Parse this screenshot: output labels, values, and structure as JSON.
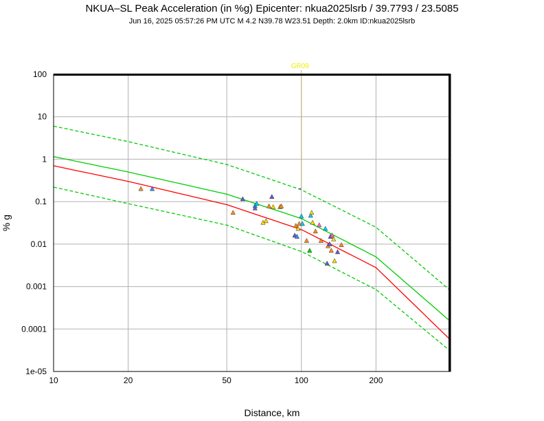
{
  "chart_data": {
    "type": "scatter",
    "title": "NKUA–SL Peak Acceleration (in %g) Epicenter: nkua2025lsrb / 39.7793 / 23.5085",
    "subtitle": "Jun 16, 2025 05:57:26 PM UTC   M 4.2   N39.78 W23.51   Depth: 2.0km   ID:nkua2025lsrb",
    "xlabel": "Distance, km",
    "ylabel": "% g",
    "x_scale": "log",
    "y_scale": "log",
    "xlim": [
      10,
      400
    ],
    "ylim": [
      1e-05,
      100
    ],
    "grid": true,
    "x_ticks": [
      {
        "value": 10,
        "label": "10"
      },
      {
        "value": 20,
        "label": "20"
      },
      {
        "value": 50,
        "label": "50"
      },
      {
        "value": 100,
        "label": "100"
      },
      {
        "value": 200,
        "label": "200"
      }
    ],
    "y_ticks": [
      {
        "value": 100,
        "label": "100"
      },
      {
        "value": 10,
        "label": "10"
      },
      {
        "value": 1,
        "label": "1"
      },
      {
        "value": 0.1,
        "label": "0.1"
      },
      {
        "value": 0.01,
        "label": "0.01"
      },
      {
        "value": 0.001,
        "label": "0.001"
      },
      {
        "value": 0.0001,
        "label": "0.0001"
      },
      {
        "value": 1e-05,
        "label": "1e-05"
      }
    ],
    "curves": [
      {
        "color": "#ff0000",
        "dash": false,
        "x": [
          10,
          20,
          50,
          100,
          200,
          400
        ],
        "y": [
          0.7,
          0.3,
          0.085,
          0.022,
          0.0028,
          5.5e-05
        ]
      },
      {
        "color": "#00cc00",
        "dash": false,
        "x": [
          10,
          20,
          50,
          100,
          200,
          400
        ],
        "y": [
          1.15,
          0.5,
          0.15,
          0.04,
          0.005,
          0.00015
        ]
      },
      {
        "color": "#00cc00",
        "dash": true,
        "x": [
          10,
          20,
          50,
          100,
          200,
          400
        ],
        "y": [
          6.0,
          2.6,
          0.75,
          0.19,
          0.025,
          0.0008
        ]
      },
      {
        "color": "#00cc00",
        "dash": true,
        "x": [
          10,
          20,
          50,
          100,
          200,
          400
        ],
        "y": [
          0.22,
          0.09,
          0.028,
          0.0067,
          0.00085,
          3e-05
        ]
      }
    ],
    "station_marker": {
      "label": "GR09",
      "x": 100,
      "y": 0.2,
      "color": "#eeee00"
    },
    "points": [
      {
        "x": 22.5,
        "y": 0.2,
        "color": "#ff8c1a"
      },
      {
        "x": 25,
        "y": 0.2,
        "color": "#3c8cff"
      },
      {
        "x": 53,
        "y": 0.055,
        "color": "#ff8c1a"
      },
      {
        "x": 58,
        "y": 0.115,
        "color": "#6a5acd"
      },
      {
        "x": 65,
        "y": 0.08,
        "color": "#00c8ff"
      },
      {
        "x": 65,
        "y": 0.07,
        "color": "#6a5acd"
      },
      {
        "x": 66,
        "y": 0.09,
        "color": "#00c8ff"
      },
      {
        "x": 70,
        "y": 0.032,
        "color": "#ffd700"
      },
      {
        "x": 72,
        "y": 0.035,
        "color": "#ffd700"
      },
      {
        "x": 74,
        "y": 0.078,
        "color": "#ff8c1a"
      },
      {
        "x": 76,
        "y": 0.13,
        "color": "#6a5acd"
      },
      {
        "x": 77,
        "y": 0.075,
        "color": "#ffd700"
      },
      {
        "x": 82,
        "y": 0.075,
        "color": "#ff8c1a"
      },
      {
        "x": 83,
        "y": 0.078,
        "color": "#ff8c1a"
      },
      {
        "x": 94,
        "y": 0.016,
        "color": "#6a5acd"
      },
      {
        "x": 95,
        "y": 0.027,
        "color": "#ff8c1a"
      },
      {
        "x": 96,
        "y": 0.015,
        "color": "#3c8cff"
      },
      {
        "x": 97,
        "y": 0.023,
        "color": "#ffd700"
      },
      {
        "x": 98,
        "y": 0.03,
        "color": "#ff8c1a"
      },
      {
        "x": 100,
        "y": 0.045,
        "color": "#00c8ff"
      },
      {
        "x": 101,
        "y": 0.03,
        "color": "#00c8ff"
      },
      {
        "x": 105,
        "y": 0.012,
        "color": "#ff8c1a"
      },
      {
        "x": 108,
        "y": 0.007,
        "color": "#00cc00"
      },
      {
        "x": 109,
        "y": 0.047,
        "color": "#00c8ff"
      },
      {
        "x": 110,
        "y": 0.055,
        "color": "#ffd700"
      },
      {
        "x": 111,
        "y": 0.032,
        "color": "#ffd700"
      },
      {
        "x": 114,
        "y": 0.02,
        "color": "#ff8c1a"
      },
      {
        "x": 118,
        "y": 0.028,
        "color": "#ff69b4"
      },
      {
        "x": 120,
        "y": 0.012,
        "color": "#ff8c1a"
      },
      {
        "x": 125,
        "y": 0.023,
        "color": "#00c8ff"
      },
      {
        "x": 127,
        "y": 0.0035,
        "color": "#6a5acd"
      },
      {
        "x": 128,
        "y": 0.009,
        "color": "#ff8c1a"
      },
      {
        "x": 130,
        "y": 0.01,
        "color": "#6a5acd"
      },
      {
        "x": 131,
        "y": 0.015,
        "color": "#6a5acd"
      },
      {
        "x": 132,
        "y": 0.007,
        "color": "#ff8c1a"
      },
      {
        "x": 133,
        "y": 0.016,
        "color": "#ff69b4"
      },
      {
        "x": 135,
        "y": 0.013,
        "color": "#ffd700"
      },
      {
        "x": 136,
        "y": 0.004,
        "color": "#ffd700"
      },
      {
        "x": 140,
        "y": 0.0065,
        "color": "#6a5acd"
      },
      {
        "x": 145,
        "y": 0.0095,
        "color": "#ff8c1a"
      }
    ]
  }
}
